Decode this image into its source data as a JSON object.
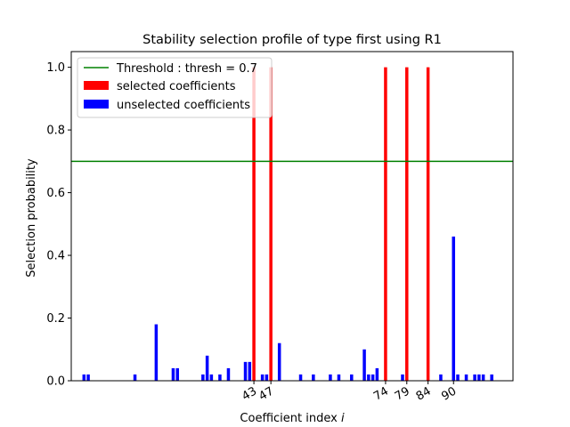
{
  "chart_data": {
    "type": "bar",
    "title": "Stability selection profile of type first using R1",
    "xlabel": "Coefficient index ",
    "xlabel_italic": "i",
    "ylabel": "Selection probability",
    "xlim": [
      0,
      104
    ],
    "ylim": [
      0,
      1.05
    ],
    "yticks": [
      0.0,
      0.2,
      0.4,
      0.6,
      0.8,
      1.0
    ],
    "ytick_labels": [
      "0.0",
      "0.2",
      "0.4",
      "0.6",
      "0.8",
      "1.0"
    ],
    "xticks": [
      43,
      47,
      74,
      79,
      84,
      90
    ],
    "xtick_labels": [
      "43",
      "47",
      "74",
      "79",
      "84",
      "90"
    ],
    "threshold": 0.7,
    "legend_position": "upper-left",
    "legend": [
      {
        "label": "Threshold : thresh = 0.7",
        "kind": "line",
        "color": "#008000"
      },
      {
        "label": "selected coefficients",
        "kind": "patch",
        "color": "#ff0000"
      },
      {
        "label": "unselected coefficients",
        "kind": "patch",
        "color": "#0000ff"
      }
    ],
    "series": [
      {
        "status": "selected",
        "color": "#ff0000",
        "x": [
          43,
          47,
          74,
          79,
          84
        ],
        "values": [
          1.0,
          1.0,
          1.0,
          1.0,
          1.0
        ]
      },
      {
        "status": "unselected",
        "color": "#0000ff",
        "x": [
          3,
          4,
          15,
          20,
          24,
          25,
          31,
          32,
          33,
          35,
          37,
          41,
          42,
          45,
          46,
          49,
          54,
          57,
          61,
          63,
          66,
          69,
          70,
          71,
          72,
          78,
          87,
          90,
          91,
          93,
          95,
          96,
          97,
          99
        ],
        "values": [
          0.02,
          0.02,
          0.02,
          0.18,
          0.04,
          0.04,
          0.02,
          0.08,
          0.02,
          0.02,
          0.04,
          0.06,
          0.06,
          0.02,
          0.02,
          0.12,
          0.02,
          0.02,
          0.02,
          0.02,
          0.02,
          0.1,
          0.02,
          0.02,
          0.04,
          0.02,
          0.02,
          0.46,
          0.02,
          0.02,
          0.02,
          0.02,
          0.02,
          0.02
        ]
      }
    ]
  }
}
